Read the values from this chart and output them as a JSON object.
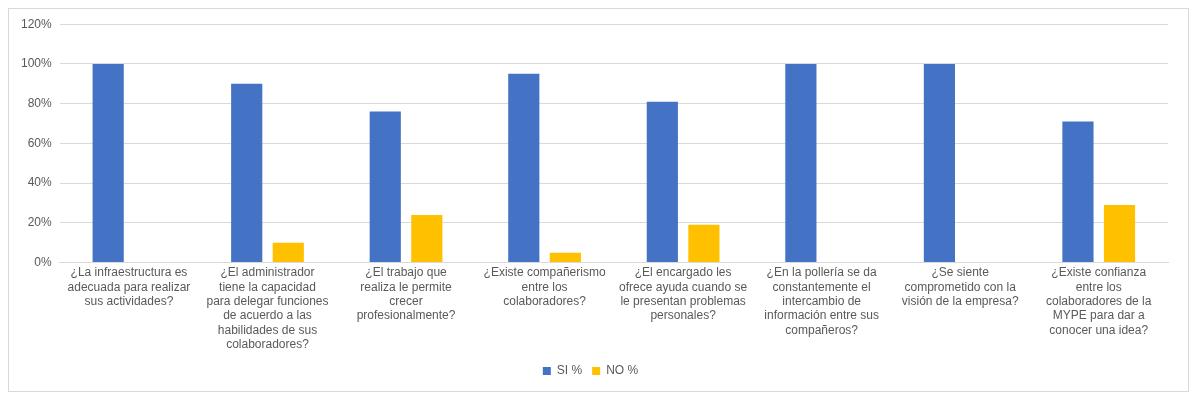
{
  "chart_data": {
    "type": "bar",
    "categories": [
      "¿La infraestructura es adecuada para realizar sus actividades?",
      "¿El administrador tiene la capacidad para delegar funciones de acuerdo a las habilidades de sus colaboradores?",
      "¿El trabajo que realiza le permite crecer profesionalmente?",
      "¿Existe compañerismo entre los colaboradores?",
      "¿El encargado les ofrece ayuda cuando se le presentan problemas personales?",
      "¿En la pollería se da constantemente el intercambio de información entre sus compañeros?",
      "¿Se siente comprometido con la visión de la empresa?",
      "¿Existe confianza entre los colaboradores de la MYPE para dar a conocer una idea?"
    ],
    "series": [
      {
        "name": "SI %",
        "color": "#4472c4",
        "values": [
          100,
          90,
          76,
          95,
          81,
          100,
          100,
          71
        ]
      },
      {
        "name": "NO %",
        "color": "#ffc000",
        "values": [
          0,
          10,
          24,
          5,
          19,
          0,
          0,
          29
        ]
      }
    ],
    "ylim": [
      0,
      120
    ],
    "yticks": [
      {
        "value": 0,
        "label": "0%"
      },
      {
        "value": 20,
        "label": "20%"
      },
      {
        "value": 40,
        "label": "40%"
      },
      {
        "value": 60,
        "label": "60%"
      },
      {
        "value": 80,
        "label": "80%"
      },
      {
        "value": 100,
        "label": "100%"
      },
      {
        "value": 120,
        "label": "120%"
      }
    ],
    "grid": "y",
    "legend": "bottom"
  }
}
